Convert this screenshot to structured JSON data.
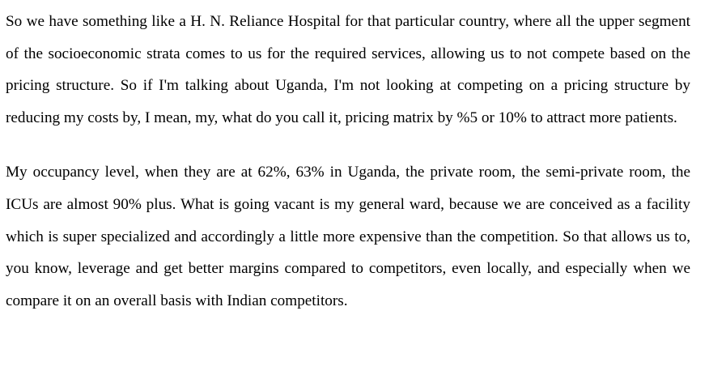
{
  "document": {
    "paragraphs": [
      "So we have something like a H. N. Reliance Hospital for that particular country, where all the upper segment of the socioeconomic strata comes to us for the required services, allowing us to not compete based on the pricing structure. So if I'm talking about Uganda, I'm not looking at competing on a pricing structure by reducing my costs by, I mean, my, what do you call it, pricing matrix by %5 or 10% to attract more patients.",
      "My occupancy level, when they are at 62%, 63% in Uganda, the private room, the semi-private room, the ICUs are almost 90% plus. What is going vacant is my general ward, because we are conceived as a facility which is super specialized and accordingly a little more expensive than the competition. So that allows us to, you know, leverage and get better margins compared to competitors, even locally, and especially when we compare it on an overall basis with Indian competitors."
    ]
  }
}
